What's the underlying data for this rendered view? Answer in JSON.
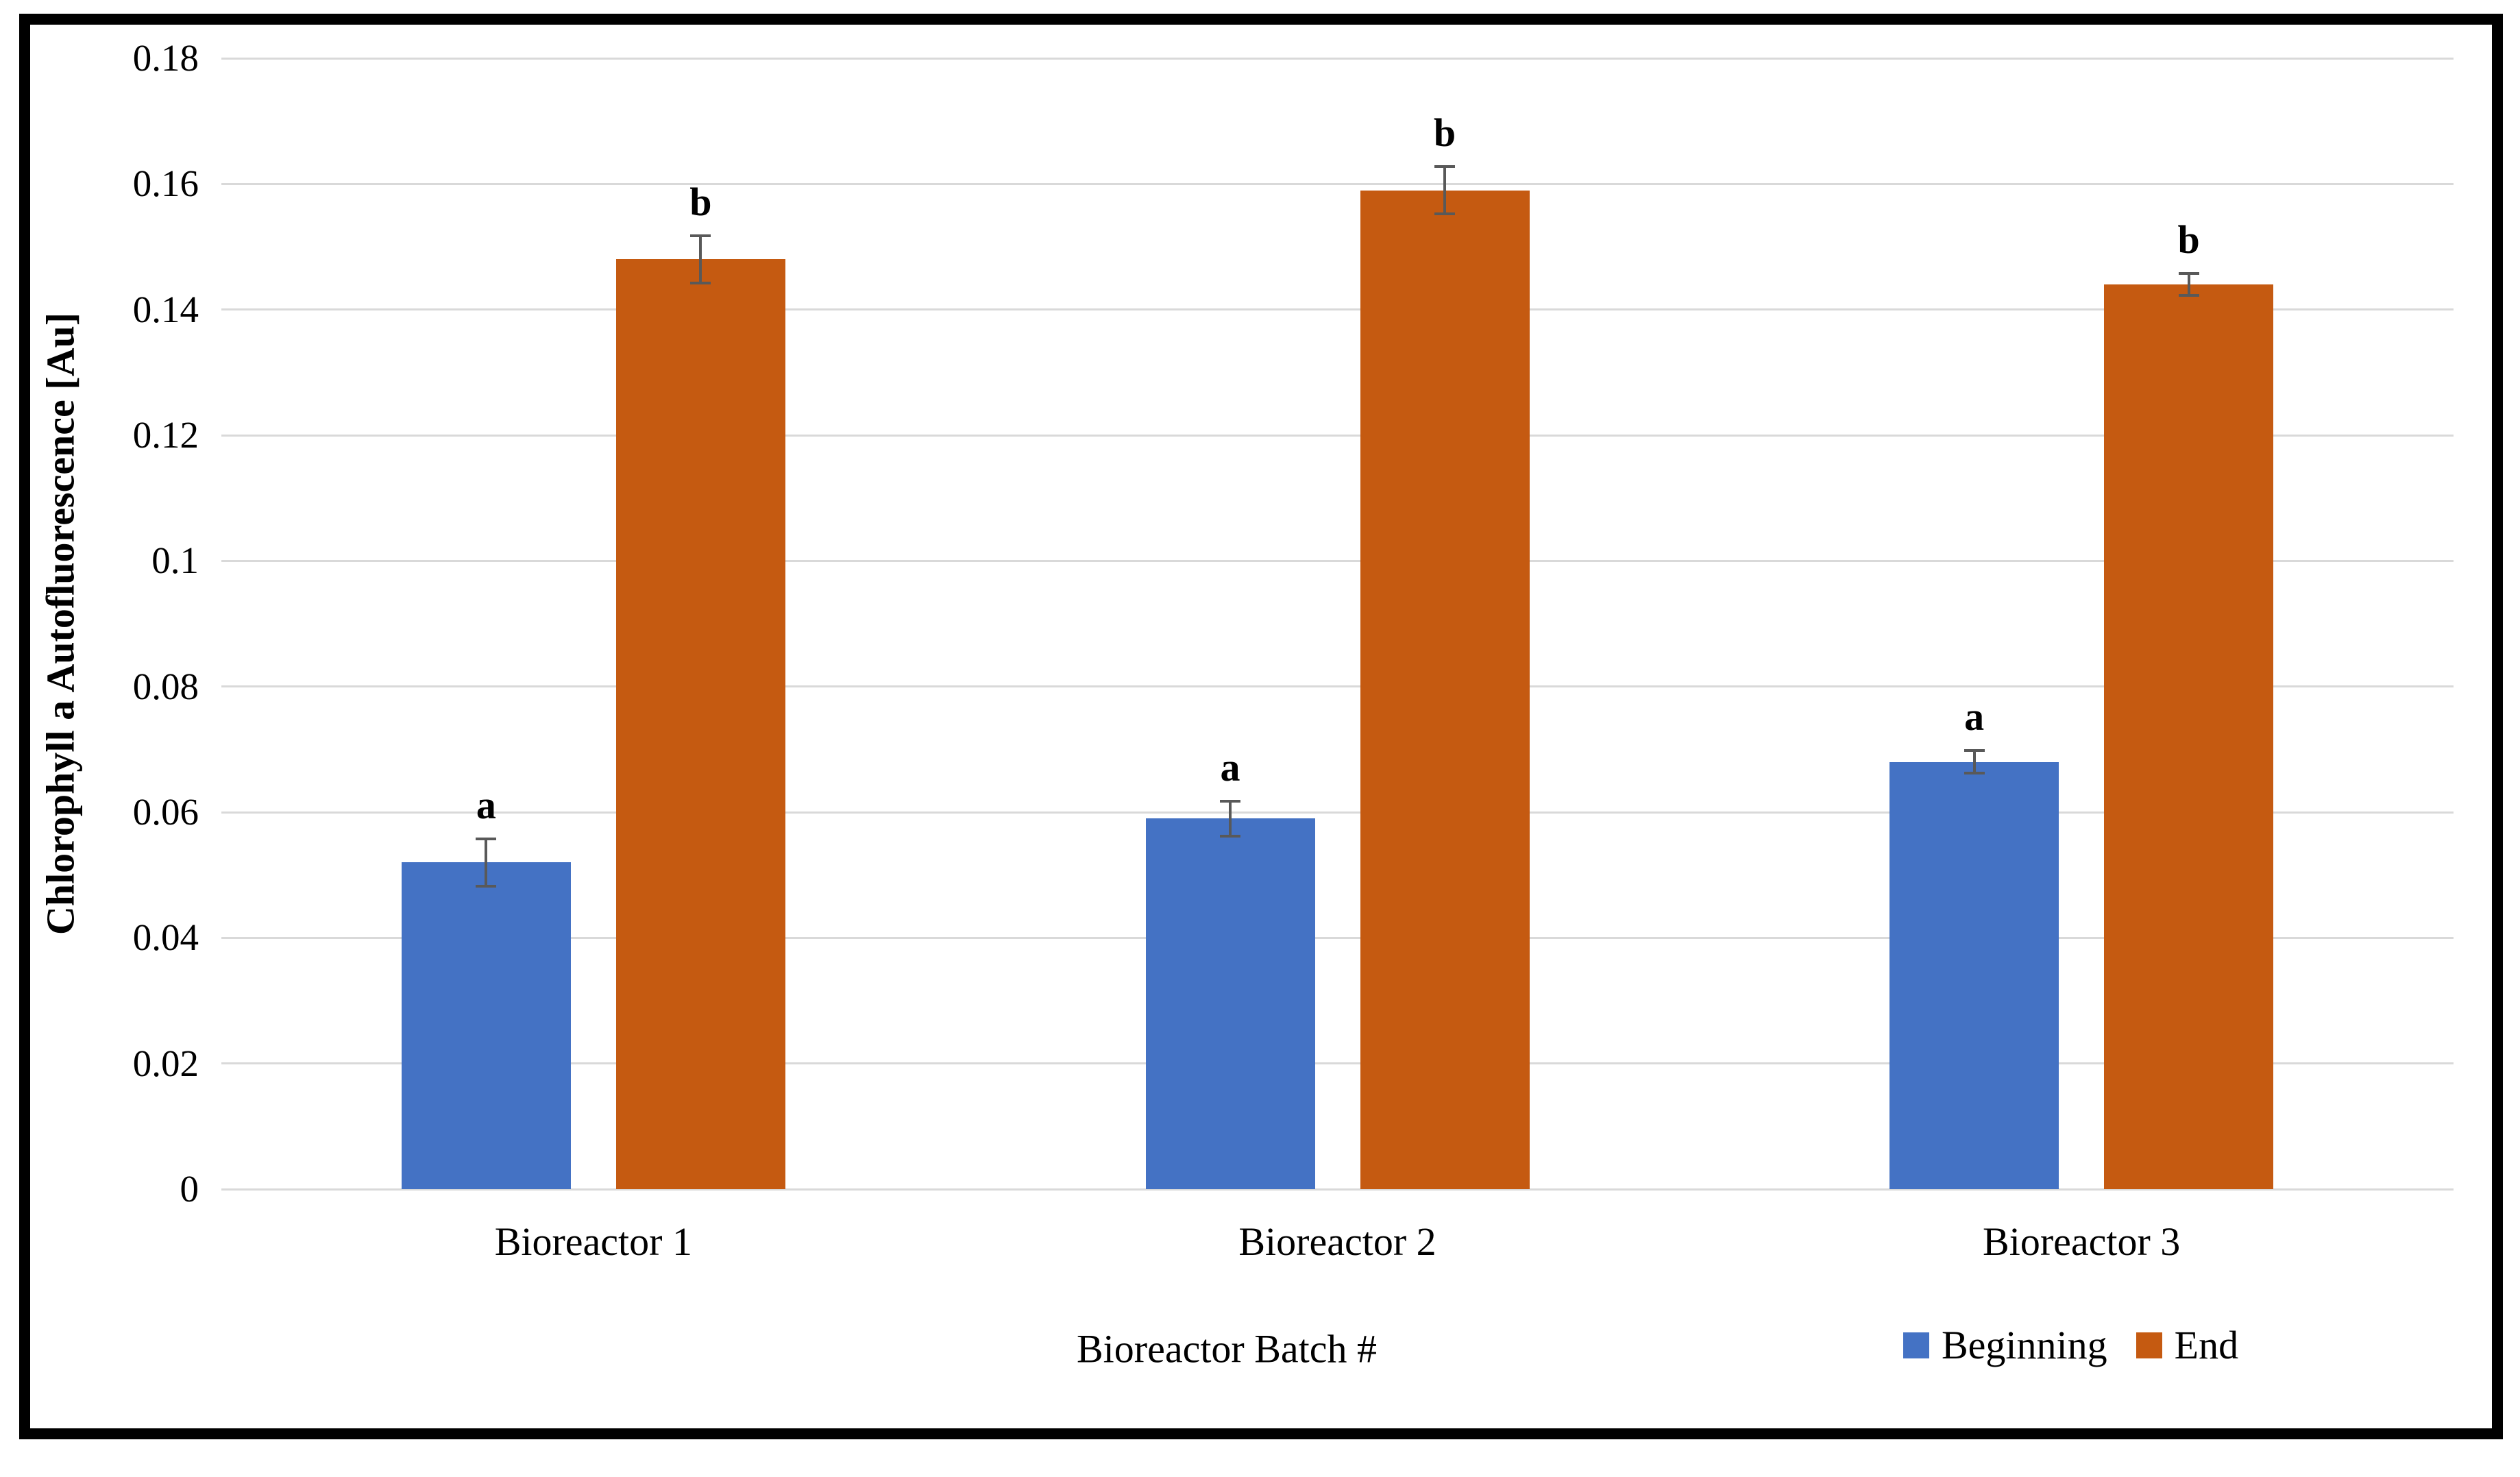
{
  "figure": {
    "background_color": "#ffffff",
    "border_color": "#000000"
  },
  "chart_data": {
    "type": "bar",
    "title": "",
    "xlabel": "Bioreactor Batch #",
    "ylabel": "Chlorophyll a Autofluorescence [Au]",
    "categories": [
      "Bioreactor 1",
      "Bioreactor 2",
      "Bioreactor 3"
    ],
    "series": [
      {
        "name": "Beginning",
        "color": "#4472C4",
        "values": [
          0.052,
          0.059,
          0.068
        ],
        "errors": [
          0.004,
          0.003,
          0.002
        ],
        "sig_letters": [
          "a",
          "a",
          "a"
        ]
      },
      {
        "name": "End",
        "color": "#C55A11",
        "values": [
          0.148,
          0.159,
          0.144
        ],
        "errors": [
          0.004,
          0.004,
          0.002
        ],
        "sig_letters": [
          "b",
          "b",
          "b"
        ]
      }
    ],
    "ylim": [
      0,
      0.18
    ],
    "y_ticks": [
      0,
      0.02,
      0.04,
      0.06,
      0.08,
      0.1,
      0.12,
      0.14,
      0.16,
      0.18
    ],
    "y_tick_labels": [
      "0",
      "0.02",
      "0.04",
      "0.06",
      "0.08",
      "0.1",
      "0.12",
      "0.14",
      "0.16",
      "0.18"
    ],
    "grid": "horizontal",
    "gridline_color": "#D9D9D9",
    "error_bar_color": "#595959",
    "legend_position": "bottom-right"
  }
}
